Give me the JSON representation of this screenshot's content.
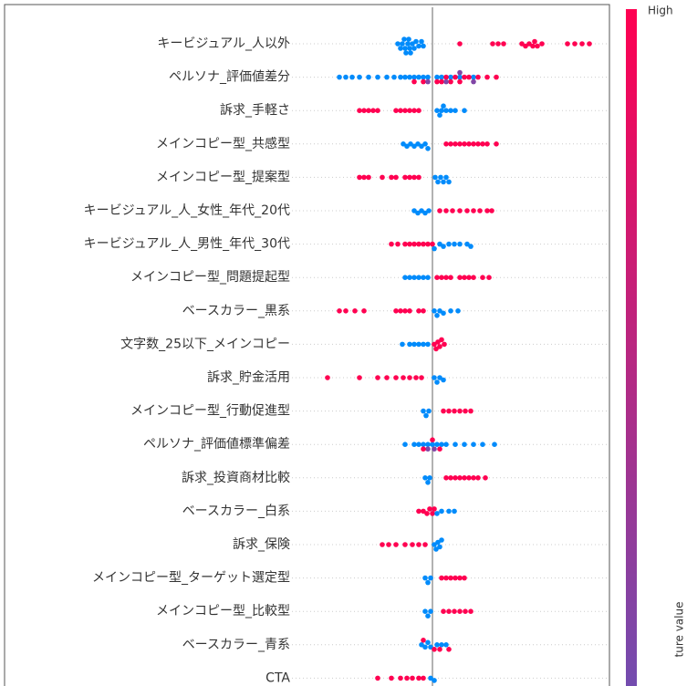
{
  "chart_data": {
    "type": "beeswarm",
    "colors": {
      "low": "#008bfb",
      "high": "#ff0051"
    },
    "colorbar_high_label": "High",
    "colorbar_label": "ture value",
    "xlim": [
      -1.54,
      1.92
    ],
    "series": [
      {
        "name": "キービジュアル_人以外",
        "values": [
          -0.38,
          -0.35,
          -0.33,
          -0.31,
          -0.3,
          -0.29,
          -0.27,
          -0.26,
          -0.25,
          -0.24,
          -0.22,
          -0.2,
          -0.18,
          -0.15,
          -0.12,
          -0.1,
          0.3,
          0.66,
          0.72,
          0.78,
          0.98,
          1.02,
          1.06,
          1.1,
          1.12,
          1.15,
          1.2,
          1.48,
          1.56,
          1.64,
          1.72
        ],
        "feature_values": [
          0,
          0,
          0,
          0,
          0,
          0,
          0,
          0,
          0,
          0,
          0,
          0,
          0,
          0,
          0,
          0,
          1,
          1,
          1,
          1,
          1,
          1,
          1,
          1,
          1,
          1,
          1,
          1,
          1,
          1,
          1
        ]
      },
      {
        "name": "ペルソナ_評価値差分",
        "values": [
          -1.02,
          -0.95,
          -0.88,
          -0.8,
          -0.7,
          -0.6,
          -0.5,
          -0.42,
          -0.35,
          -0.3,
          -0.25,
          -0.2,
          -0.15,
          -0.1,
          -0.05,
          0.05,
          0.1,
          0.2,
          0.3,
          0.45,
          -0.2,
          -0.1,
          0.05,
          0.1,
          0.15,
          0.2,
          0.25,
          0.3,
          0.35,
          0.4,
          0.5,
          0.6,
          0.7,
          0.15,
          0.3,
          0.45,
          -0.05
        ],
        "feature_values": [
          0,
          0,
          0,
          0,
          0,
          0,
          0,
          0,
          0,
          0,
          0,
          0,
          0,
          0,
          0,
          0,
          0,
          0,
          0,
          0,
          1,
          1,
          1,
          1,
          1,
          1,
          1,
          1,
          1,
          1,
          1,
          1,
          1,
          0.5,
          0.5,
          0.5,
          0.5
        ]
      },
      {
        "name": "訴求_手軽さ",
        "values": [
          -0.8,
          -0.75,
          -0.7,
          -0.65,
          -0.6,
          -0.4,
          -0.35,
          -0.3,
          -0.25,
          -0.2,
          -0.15,
          0.05,
          0.08,
          0.1,
          0.12,
          0.15,
          0.2,
          0.25,
          0.35
        ],
        "feature_values": [
          1,
          1,
          1,
          1,
          1,
          1,
          1,
          1,
          1,
          1,
          1,
          0,
          0,
          0,
          0,
          0,
          0,
          0,
          0
        ]
      },
      {
        "name": "メインコピー型_共感型",
        "values": [
          -0.32,
          -0.28,
          -0.24,
          -0.2,
          -0.16,
          -0.12,
          -0.08,
          -0.05,
          0.15,
          0.2,
          0.25,
          0.3,
          0.35,
          0.4,
          0.45,
          0.5,
          0.55,
          0.6,
          0.7
        ],
        "feature_values": [
          0,
          0,
          0,
          0,
          0,
          0,
          0,
          0,
          1,
          1,
          1,
          1,
          1,
          1,
          1,
          1,
          1,
          1,
          1
        ]
      },
      {
        "name": "メインコピー型_提案型",
        "values": [
          -0.8,
          -0.75,
          -0.7,
          -0.55,
          -0.45,
          -0.4,
          -0.3,
          -0.25,
          -0.2,
          -0.15,
          0.03,
          0.06,
          0.09,
          0.12,
          0.15,
          0.18
        ],
        "feature_values": [
          1,
          1,
          1,
          1,
          1,
          1,
          1,
          1,
          1,
          1,
          0,
          0,
          0,
          0,
          0,
          0
        ]
      },
      {
        "name": "キービジュアル_人_女性_年代_20代",
        "values": [
          -0.2,
          -0.16,
          -0.12,
          -0.08,
          -0.04,
          0.08,
          0.15,
          0.22,
          0.3,
          0.38,
          0.45,
          0.52,
          0.6,
          0.65
        ],
        "feature_values": [
          0,
          0,
          0,
          0,
          0,
          1,
          1,
          1,
          1,
          1,
          1,
          1,
          1,
          1
        ]
      },
      {
        "name": "キービジュアル_人_男性_年代_30代",
        "values": [
          -0.45,
          -0.38,
          -0.3,
          -0.25,
          -0.2,
          -0.15,
          -0.1,
          -0.05,
          0,
          0.02,
          0.08,
          0.12,
          0.18,
          0.24,
          0.3,
          0.38,
          0.42
        ],
        "feature_values": [
          1,
          1,
          1,
          1,
          1,
          1,
          1,
          1,
          1,
          0,
          0,
          0,
          0,
          0,
          0,
          0,
          0
        ]
      },
      {
        "name": "メインコピー型_問題提起型",
        "values": [
          -0.3,
          -0.25,
          -0.2,
          -0.15,
          -0.1,
          -0.05,
          0.05,
          0.1,
          0.15,
          0.2,
          0.3,
          0.35,
          0.4,
          0.45,
          0.55,
          0.62
        ],
        "feature_values": [
          0,
          0,
          0,
          0,
          0,
          0,
          1,
          1,
          1,
          1,
          1,
          1,
          1,
          1,
          1,
          1
        ]
      },
      {
        "name": "ベースカラー_黒系",
        "values": [
          -1.02,
          -0.95,
          -0.85,
          -0.75,
          -0.4,
          -0.35,
          -0.3,
          -0.25,
          -0.15,
          -0.1,
          0.02,
          0.05,
          0.08,
          0.12,
          0.2,
          0.28
        ],
        "feature_values": [
          1,
          1,
          1,
          1,
          1,
          1,
          1,
          1,
          1,
          1,
          0,
          0,
          0,
          0,
          0,
          0
        ]
      },
      {
        "name": "文字数_25以下_メインコピー",
        "values": [
          -0.33,
          -0.25,
          -0.2,
          -0.15,
          -0.1,
          -0.05,
          0.02,
          0.04,
          0.06,
          0.08,
          0.1,
          0.13
        ],
        "feature_values": [
          0,
          0,
          0,
          0,
          0,
          0,
          1,
          1,
          1,
          1,
          1,
          1
        ]
      },
      {
        "name": "訴求_貯金活用",
        "values": [
          -1.15,
          -0.8,
          -0.6,
          -0.5,
          -0.4,
          -0.32,
          -0.25,
          -0.18,
          -0.12,
          0.02,
          0.05,
          0.08,
          0.12
        ],
        "feature_values": [
          1,
          1,
          1,
          1,
          1,
          1,
          1,
          1,
          1,
          0,
          0,
          0,
          0
        ]
      },
      {
        "name": "メインコピー型_行動促進型",
        "values": [
          -0.1,
          -0.07,
          -0.04,
          0.12,
          0.18,
          0.24,
          0.3,
          0.36,
          0.42
        ],
        "feature_values": [
          0,
          0,
          0,
          1,
          1,
          1,
          1,
          1,
          1
        ]
      },
      {
        "name": "ペルソナ_評価値標準偏差",
        "values": [
          -0.3,
          -0.2,
          -0.15,
          -0.1,
          -0.05,
          0,
          0.05,
          0.1,
          0.15,
          0.25,
          0.35,
          0.45,
          0.55,
          0.68,
          -0.05,
          0.02,
          -0.1,
          0,
          0.08
        ],
        "feature_values": [
          0,
          0,
          0,
          0,
          0,
          0,
          0,
          0,
          0,
          0,
          0,
          0,
          0,
          0,
          0.5,
          0.5,
          1,
          1,
          1
        ]
      },
      {
        "name": "訴求_投資商材比較",
        "values": [
          -0.08,
          -0.05,
          -0.03,
          0.15,
          0.2,
          0.25,
          0.3,
          0.35,
          0.4,
          0.45,
          0.5,
          0.58
        ],
        "feature_values": [
          0,
          0,
          0,
          1,
          1,
          1,
          1,
          1,
          1,
          1,
          1,
          1
        ]
      },
      {
        "name": "ベースカラー_白系",
        "values": [
          -0.15,
          -0.1,
          -0.06,
          -0.03,
          0,
          0.02,
          0.05,
          0.1,
          0.18,
          0.24
        ],
        "feature_values": [
          1,
          1,
          1,
          1,
          1,
          1,
          0,
          0,
          0,
          0
        ]
      },
      {
        "name": "訴求_保険",
        "values": [
          -0.55,
          -0.48,
          -0.4,
          -0.3,
          -0.22,
          -0.15,
          -0.08,
          0.02,
          0.04,
          0.06,
          0.08,
          0.1
        ],
        "feature_values": [
          1,
          1,
          1,
          1,
          1,
          1,
          1,
          0,
          0,
          0,
          0,
          0
        ]
      },
      {
        "name": "メインコピー型_ターゲット選定型",
        "values": [
          -0.08,
          -0.05,
          -0.02,
          0.1,
          0.15,
          0.2,
          0.25,
          0.3,
          0.35
        ],
        "feature_values": [
          0,
          0,
          0,
          1,
          1,
          1,
          1,
          1,
          1
        ]
      },
      {
        "name": "メインコピー型_比較型",
        "values": [
          -0.08,
          -0.05,
          -0.02,
          0.12,
          0.18,
          0.24,
          0.3,
          0.36,
          0.42
        ],
        "feature_values": [
          0,
          0,
          0,
          1,
          1,
          1,
          1,
          1,
          1
        ]
      },
      {
        "name": "ベースカラー_青系",
        "values": [
          -0.12,
          -0.08,
          -0.05,
          -0.02,
          0.05,
          0.1,
          0.15,
          -0.1,
          0.02,
          0.08,
          0.18
        ],
        "feature_values": [
          0,
          0,
          0,
          0,
          0,
          0,
          0,
          1,
          1,
          1,
          1
        ]
      },
      {
        "name": "CTA",
        "values": [
          -0.6,
          -0.45,
          -0.35,
          -0.28,
          -0.22,
          -0.15,
          -0.1,
          -0.02,
          0.02
        ],
        "feature_values": [
          1,
          1,
          1,
          1,
          1,
          1,
          1,
          0,
          0
        ]
      }
    ]
  }
}
